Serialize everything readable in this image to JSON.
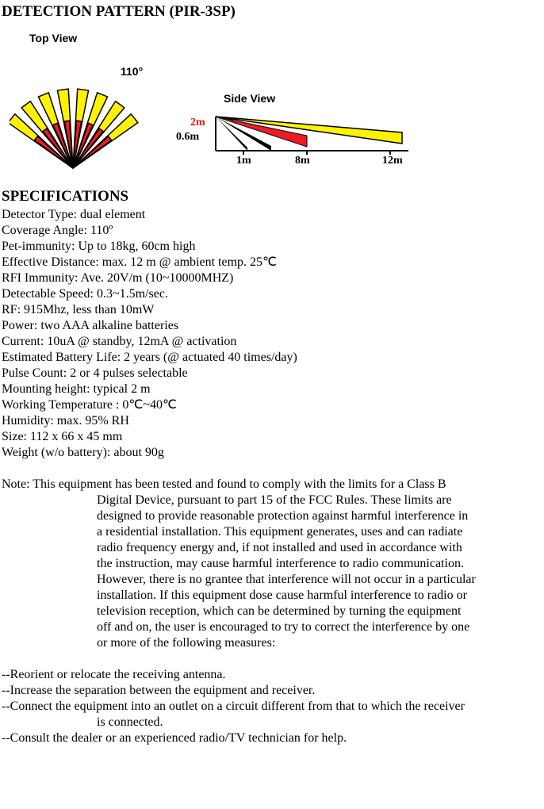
{
  "title": "DETECTION PATTERN (PIR-3SP)",
  "top_view": {
    "label": "Top View",
    "angle_label": "110°",
    "angle_deg": 110,
    "beam_count_pairs": 8,
    "colors": {
      "yellow": "#fff200",
      "red": "#ed1c24",
      "stroke": "#000000"
    }
  },
  "side_view": {
    "label": "Side View",
    "y_labels": {
      "top": "2m",
      "bottom": "0.6m"
    },
    "x_labels": [
      "1m",
      "8m",
      "12m"
    ],
    "colors": {
      "yellow": "#fff200",
      "red": "#ed1c24",
      "black": "#000000"
    }
  },
  "specs_title": "SPECIFICATIONS",
  "specs": [
    "Detector Type: dual element",
    "Coverage Angle: 110º",
    "Pet-immunity: Up to 18kg, 60cm high",
    "Effective Distance: max. 12 m @ ambient temp. 25℃",
    "RFI Immunity: Ave. 20V/m (10~10000MHZ)",
    "Detectable Speed: 0.3~1.5m/sec.",
    "RF: 915Mhz, less than 10mW",
    "Power: two AAA alkaline batteries",
    "Current: 10uA @ standby, 12mA @ activation",
    "Estimated Battery Life: 2 years (@ actuated 40 times/day)",
    "Pulse Count: 2 or 4 pulses selectable",
    "Mounting height: typical 2 m",
    "Working Temperature : 0℃~40℃",
    "Humidity: max. 95% RH",
    "Size: 112 x 66 x 45 mm",
    "Weight (w/o battery): about 90g"
  ],
  "note_first": "Note: This equipment has been tested and found to comply with the limits for a Class B",
  "note_rest": [
    "Digital Device, pursuant to part 15 of the FCC Rules. These limits are",
    "designed to provide reasonable protection against harmful interference in",
    "a residential installation. This equipment generates, uses and can radiate",
    "radio frequency energy and, if not installed and used in accordance with",
    "the instruction, may cause harmful interference to radio communication.",
    "However, there is no grantee that interference will not occur in a particular",
    "installation. If this equipment dose cause harmful interference to radio or",
    "television reception, which can be determined by turning the equipment",
    "off and on, the user is encouraged to try to correct the interference by one",
    "or more of the following measures:"
  ],
  "measures": [
    {
      "first": "--Reorient or relocate the receiving antenna.",
      "rest": []
    },
    {
      "first": "--Increase the separation between the equipment and receiver.",
      "rest": []
    },
    {
      "first": "--Connect the equipment into an outlet on a circuit different from that to which the receiver",
      "rest": [
        "is connected."
      ]
    },
    {
      "first": "--Consult the dealer or an experienced radio/TV technician for help.",
      "rest": []
    }
  ]
}
